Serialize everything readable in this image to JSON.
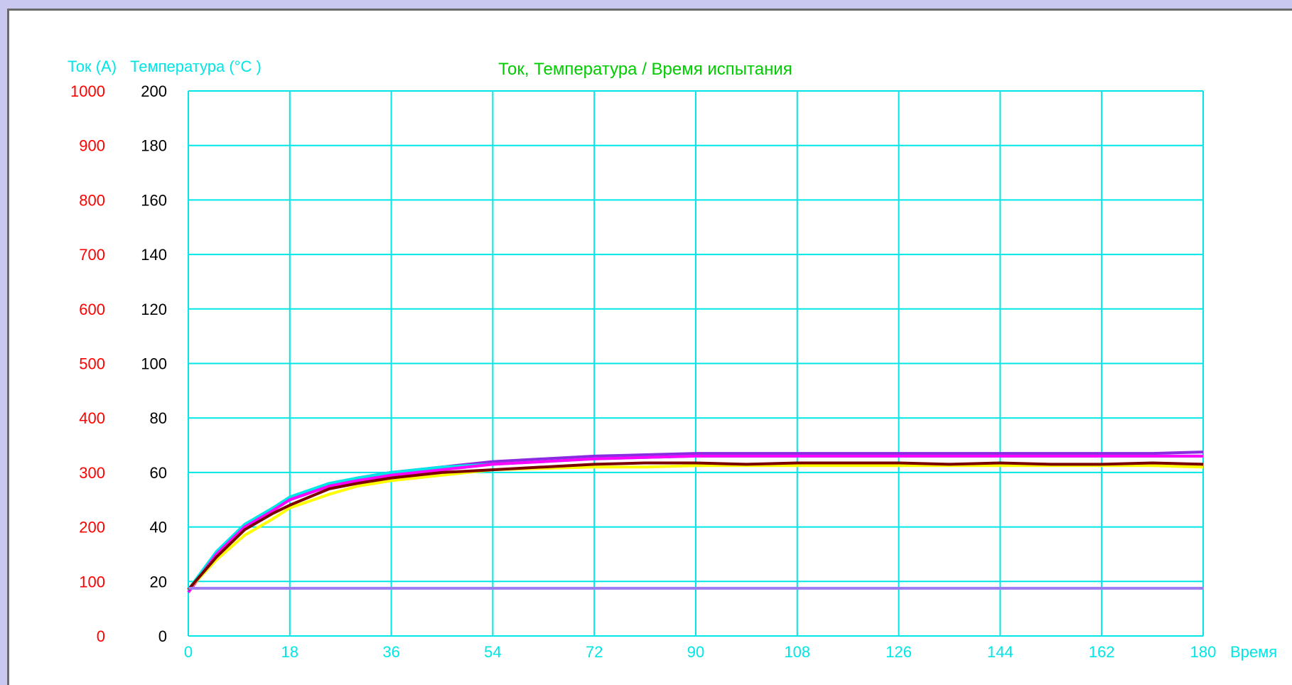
{
  "chart_data": {
    "type": "line",
    "title": "Ток, Температура / Время испытания",
    "ylabel_left": "Ток (A)",
    "ylabel_right": "Температура (°C )",
    "xlabel": "Время",
    "xlim": [
      0,
      180
    ],
    "ylim_temperature": [
      0,
      200
    ],
    "ylim_current": [
      0,
      1000
    ],
    "x_ticks": [
      "0",
      "18",
      "36",
      "54",
      "72",
      "90",
      "108",
      "126",
      "144",
      "162",
      "180"
    ],
    "y_ticks_current": [
      "1000",
      "900",
      "800",
      "700",
      "600",
      "500",
      "400",
      "300",
      "200",
      "100",
      "0"
    ],
    "y_ticks_temperature": [
      "200",
      "180",
      "160",
      "140",
      "120",
      "100",
      "80",
      "60",
      "40",
      "20",
      "0"
    ],
    "grid": true,
    "colors": {
      "grid": "#00e6e6",
      "title": "#00cc00",
      "current_ticks": "#ff0000",
      "temperature_ticks": "#000000",
      "x_ticks": "#00e6e6",
      "ylabel_left": "#00e6e6",
      "ylabel_right": "#00e6e6"
    },
    "series": [
      {
        "color": "#8a2be2",
        "x": [
          0,
          5,
          10,
          15,
          18,
          25,
          30,
          36,
          45,
          54,
          63,
          72,
          81,
          90,
          99,
          108,
          117,
          126,
          135,
          144,
          153,
          162,
          171,
          180
        ],
        "y": [
          17,
          30,
          40,
          47,
          50,
          55,
          58,
          60,
          62,
          64,
          65,
          66,
          66.5,
          67,
          67,
          67,
          67,
          67,
          67,
          67,
          67,
          67,
          67,
          67.5
        ]
      },
      {
        "color": "#00e6e6",
        "x": [
          0,
          5,
          10,
          15,
          18,
          25,
          30,
          36,
          45,
          54,
          63,
          72,
          81,
          90,
          99,
          108,
          117,
          126,
          135,
          144,
          153,
          162,
          171,
          180
        ],
        "y": [
          17,
          31,
          41,
          47,
          51,
          56,
          58,
          60,
          62,
          63,
          64,
          65,
          65.5,
          66,
          66,
          66,
          66,
          66,
          66,
          66,
          66,
          66,
          66,
          66
        ]
      },
      {
        "color": "#ff00ff",
        "x": [
          0,
          5,
          10,
          15,
          18,
          25,
          30,
          36,
          45,
          54,
          63,
          72,
          81,
          90,
          99,
          108,
          117,
          126,
          135,
          144,
          153,
          162,
          171,
          180
        ],
        "y": [
          16,
          30,
          40,
          46,
          50,
          55,
          57,
          59,
          61,
          63,
          64,
          65,
          65.5,
          66,
          66,
          66,
          66,
          66,
          66,
          66,
          66,
          66,
          66,
          66
        ]
      },
      {
        "color": "#ffff00",
        "x": [
          0,
          5,
          10,
          15,
          18,
          25,
          30,
          36,
          45,
          54,
          63,
          72,
          81,
          90,
          99,
          108,
          117,
          126,
          135,
          144,
          153,
          162,
          171,
          180
        ],
        "y": [
          17,
          28,
          37,
          43,
          47,
          52,
          55,
          57,
          59,
          61,
          61.5,
          62,
          62,
          62.5,
          62.5,
          62.5,
          62.5,
          62.5,
          62.5,
          62.5,
          62.5,
          62.5,
          62.5,
          62
        ]
      },
      {
        "color": "#7a0000",
        "x": [
          0,
          5,
          10,
          15,
          18,
          25,
          30,
          36,
          45,
          54,
          63,
          72,
          81,
          90,
          99,
          108,
          117,
          126,
          135,
          144,
          153,
          162,
          171,
          180
        ],
        "y": [
          17,
          29,
          39,
          45,
          48,
          54,
          56,
          58,
          60,
          61,
          62,
          63,
          63.5,
          63.5,
          63,
          63.5,
          63.5,
          63.5,
          63,
          63.5,
          63,
          63,
          63.5,
          63
        ]
      },
      {
        "color": "#9b7bf0",
        "x": [
          0,
          180
        ],
        "y": [
          17.5,
          17.5
        ]
      }
    ]
  }
}
